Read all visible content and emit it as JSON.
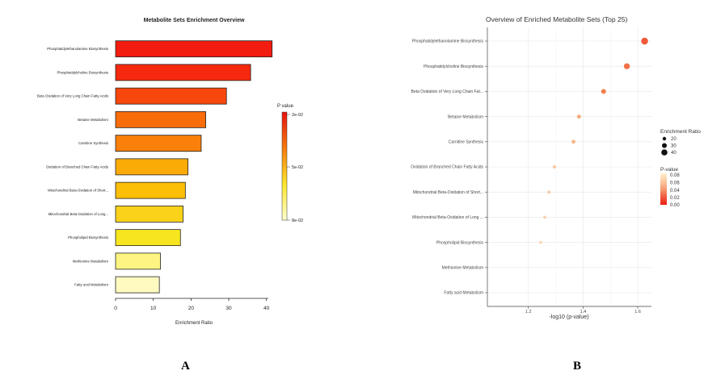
{
  "panels": {
    "a_label": "A",
    "b_label": "B"
  },
  "chart_data": [
    {
      "type": "bar",
      "orientation": "horizontal",
      "title": "Metabolite Sets Enrichment Overview",
      "xlabel": "Enrichment Ratio",
      "ylabel": "",
      "xlim": [
        0,
        42
      ],
      "xticks": [
        0,
        10,
        20,
        30,
        40
      ],
      "grid": false,
      "categories": [
        "Phosphatidylethanolamine Biosynthesis",
        "Phosphatidylcholine Biosynthesis",
        "Beta Oxidation of Very Long Chain Fatty Acids",
        "Betaine Metabolism",
        "Carnitine Synthesis",
        "Oxidation of Branched Chain Fatty Acids",
        "Mitochondrial Beta-Oxidation of Short...",
        "Mitochondrial Beta-Oxidation of Long...",
        "Phospholipid Biosynthesis",
        "Methionine Metabolism",
        "Fatty acid Metabolism"
      ],
      "values": [
        41.5,
        35.8,
        29.4,
        23.9,
        22.7,
        19.2,
        18.5,
        17.9,
        17.2,
        11.9,
        11.6
      ],
      "bar_colors": [
        "#f21c10",
        "#f6290e",
        "#f8470c",
        "#f86c0a",
        "#f9800a",
        "#fbab08",
        "#fbbf08",
        "#fad21a",
        "#f7e51f",
        "#fdf582",
        "#fefac0"
      ],
      "legend": {
        "title": "P value",
        "position": "right",
        "labels": [
          "2e-02",
          "5e-02",
          "8e-02"
        ],
        "colors": [
          "#e8120e",
          "#f67a0c",
          "#fde62a",
          "#ffffd0"
        ]
      }
    },
    {
      "type": "scatter",
      "title": "Overview of Enriched Metabolite Sets (Top 25)",
      "xlabel": "-log10 (p-value)",
      "ylabel": "",
      "xlim": [
        1.05,
        1.65
      ],
      "xticks": [
        1.2,
        1.4,
        1.6
      ],
      "grid": true,
      "categories": [
        "Phosphatidylethanolamine Biosynthesis",
        "Phosphatidylcholine Biosynthesis",
        "Beta Oxidation of Very Long Chain Fat...",
        "Betaine Metabolism",
        "Carnitine Synthesis",
        "Oxidation of Branched Chain Fatty Acids",
        "Mitochondrial Beta-Oxidation of Short...",
        "Mitochondrial Beta-Oxidation of Long ...",
        "Phospholipid Biosynthesis",
        "Methionine Metabolism",
        "Fatty acid Metabolism"
      ],
      "x": [
        1.625,
        1.56,
        1.475,
        1.385,
        1.365,
        1.295,
        1.275,
        1.26,
        1.245,
        null,
        null
      ],
      "sizes": [
        41.5,
        35.8,
        29.4,
        23.9,
        22.7,
        19.2,
        18.5,
        17.9,
        17.2,
        11.9,
        11.6
      ],
      "point_colors": [
        "#f05a38",
        "#f27044",
        "#f2804e",
        "#f5ad7c",
        "#f6b488",
        "#f8c7a0",
        "#f8cba6",
        "#f9d1ae",
        "#f9d6b4",
        null,
        null
      ],
      "legend_size": {
        "title": "Enrichment Ratio",
        "position": "right",
        "labels": [
          "20",
          "30",
          "40"
        ]
      },
      "legend_color": {
        "title": "P-value",
        "position": "right",
        "labels": [
          "0.08",
          "0.06",
          "0.04",
          "0.02",
          "0.00"
        ],
        "colors": [
          "#fff1cf",
          "#fbc9a0",
          "#f59a72",
          "#f05a3e",
          "#ee1f16"
        ]
      }
    }
  ]
}
